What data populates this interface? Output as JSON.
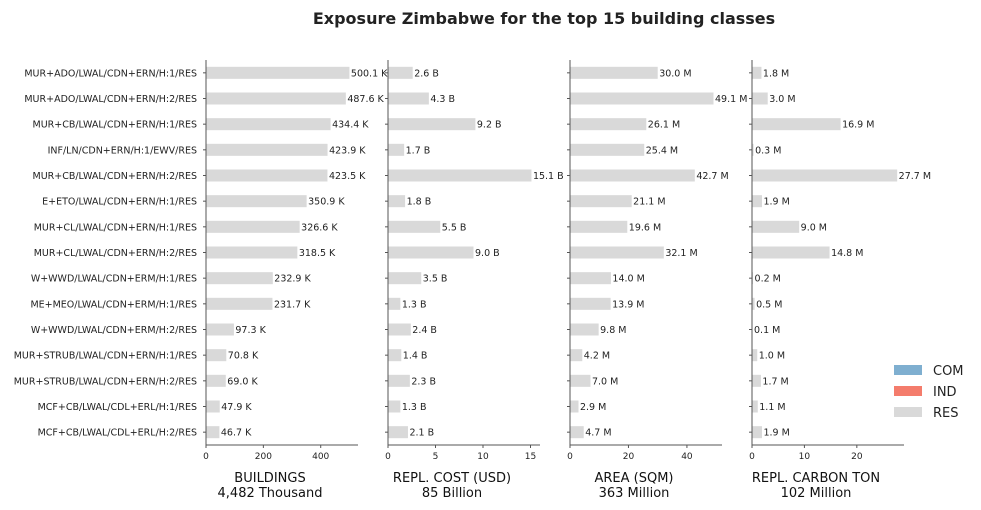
{
  "chart_data": {
    "type": "bar",
    "orientation": "horizontal",
    "title": "Exposure Zimbabwe for the top 15 building classes",
    "categories": [
      "MUR+ADO/LWAL/CDN+ERN/H:1/RES",
      "MUR+ADO/LWAL/CDN+ERN/H:2/RES",
      "MUR+CB/LWAL/CDN+ERN/H:1/RES",
      "INF/LN/CDN+ERN/H:1/EWV/RES",
      "MUR+CB/LWAL/CDN+ERN/H:2/RES",
      "E+ETO/LWAL/CDN+ERN/H:1/RES",
      "MUR+CL/LWAL/CDN+ERN/H:1/RES",
      "MUR+CL/LWAL/CDN+ERN/H:2/RES",
      "W+WWD/LWAL/CDN+ERM/H:1/RES",
      "ME+MEO/LWAL/CDN+ERM/H:1/RES",
      "W+WWD/LWAL/CDN+ERM/H:2/RES",
      "MUR+STRUB/LWAL/CDN+ERN/H:1/RES",
      "MUR+STRUB/LWAL/CDN+ERN/H:2/RES",
      "MCF+CB/LWAL/CDL+ERL/H:1/RES",
      "MCF+CB/LWAL/CDL+ERL/H:2/RES"
    ],
    "panels": [
      {
        "xlabel": "BUILDINGS",
        "total": "4,482 Thousand",
        "xlim": [
          0,
          530
        ],
        "xticks": [
          0,
          200,
          400
        ],
        "values": [
          500.1,
          487.6,
          434.4,
          423.9,
          423.5,
          350.9,
          326.6,
          318.5,
          232.9,
          231.7,
          97.3,
          70.8,
          69.0,
          47.9,
          46.7
        ],
        "labels": [
          "500.1 K",
          "487.6 K",
          "434.4 K",
          "423.9 K",
          "423.5 K",
          "350.9 K",
          "326.6 K",
          "318.5 K",
          "232.9 K",
          "231.7 K",
          "97.3 K",
          "70.8 K",
          "69.0 K",
          "47.9 K",
          "46.7 K"
        ]
      },
      {
        "xlabel": "REPL. COST (USD)",
        "total": "85 Billion",
        "xlim": [
          0,
          16
        ],
        "xticks": [
          0,
          5,
          10,
          15
        ],
        "values": [
          2.6,
          4.3,
          9.2,
          1.7,
          15.1,
          1.8,
          5.5,
          9.0,
          3.5,
          1.3,
          2.4,
          1.4,
          2.3,
          1.3,
          2.1
        ],
        "labels": [
          "2.6 B",
          "4.3 B",
          "9.2 B",
          "1.7 B",
          "15.1 B",
          "1.8 B",
          "5.5 B",
          "9.0 B",
          "3.5 B",
          "1.3 B",
          "2.4 B",
          "1.4 B",
          "2.3 B",
          "1.3 B",
          "2.1 B"
        ]
      },
      {
        "xlabel": "AREA (SQM)",
        "total": "363 Million",
        "xlim": [
          0,
          52
        ],
        "xticks": [
          0,
          20,
          40
        ],
        "values": [
          30.0,
          49.1,
          26.1,
          25.4,
          42.7,
          21.1,
          19.6,
          32.1,
          14.0,
          13.9,
          9.8,
          4.2,
          7.0,
          2.9,
          4.7
        ],
        "labels": [
          "30.0 M",
          "49.1 M",
          "26.1 M",
          "25.4 M",
          "42.7 M",
          "21.1 M",
          "19.6 M",
          "32.1 M",
          "14.0 M",
          "13.9 M",
          "9.8 M",
          "4.2 M",
          "7.0 M",
          "2.9 M",
          "4.7 M"
        ]
      },
      {
        "xlabel": "REPL. CARBON TON",
        "total": "102 Million",
        "xlim": [
          0,
          29
        ],
        "xticks": [
          0,
          10,
          20
        ],
        "values": [
          1.8,
          3.0,
          16.9,
          0.3,
          27.7,
          1.9,
          9.0,
          14.8,
          0.2,
          0.5,
          0.1,
          1.0,
          1.7,
          1.1,
          1.9
        ],
        "labels": [
          "1.8 M",
          "3.0 M",
          "16.9 M",
          "0.3 M",
          "27.7 M",
          "1.9 M",
          "9.0 M",
          "14.8 M",
          "0.2 M",
          "0.5 M",
          "0.1 M",
          "1.0 M",
          "1.7 M",
          "1.1 M",
          "1.9 M"
        ]
      }
    ],
    "legend": {
      "placement": "right",
      "entries": [
        {
          "name": "COM",
          "color": "#7fafd0"
        },
        {
          "name": "IND",
          "color": "#f47c6c"
        },
        {
          "name": "RES",
          "color": "#d9d9d9"
        }
      ]
    },
    "bar_color": "#d9d9d9",
    "axis_color": "#555555"
  }
}
